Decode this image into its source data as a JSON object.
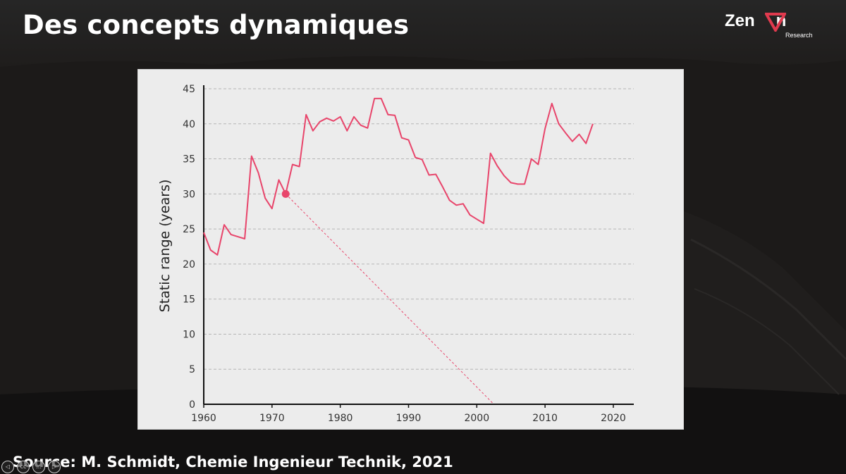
{
  "slide": {
    "title": "Des concepts dynamiques",
    "source": "Source: M. Schmidt, Chemie Ingenieur Technik, 2021"
  },
  "logo": {
    "name": "Zen▽n",
    "sub": "Research",
    "accent": "#e03a4e"
  },
  "player": {
    "controls": [
      {
        "name": "prev-control",
        "glyph": "◁"
      },
      {
        "name": "captions-control",
        "glyph": "cc"
      },
      {
        "name": "settings-control",
        "glyph": "…"
      },
      {
        "name": "next-control",
        "glyph": "▷"
      }
    ]
  },
  "chart_data": {
    "type": "line",
    "ylabel": "Static range (years)",
    "xlabel": "",
    "xlim": [
      1960,
      2023
    ],
    "ylim": [
      0,
      45
    ],
    "x_ticks": [
      1960,
      1970,
      1980,
      1990,
      2000,
      2010,
      2020
    ],
    "y_ticks": [
      0,
      5,
      10,
      15,
      20,
      25,
      30,
      35,
      40,
      45
    ],
    "grid": "horizontal-dashed",
    "line_color": "#e8456b",
    "series": [
      {
        "x": [
          1960,
          1961,
          1962,
          1963,
          1964,
          1965,
          1966,
          1967,
          1968,
          1969,
          1970,
          1971,
          1972,
          1973,
          1974,
          1975,
          1976,
          1977,
          1978,
          1979,
          1980,
          1981,
          1982,
          1983,
          1984,
          1985,
          1986,
          1987,
          1988,
          1989,
          1990,
          1991,
          1992,
          1993,
          1994,
          1995,
          1996,
          1997,
          1998,
          1999,
          2000,
          2001,
          2002,
          2003,
          2004,
          2005,
          2006,
          2007,
          2008,
          2009,
          2010,
          2011,
          2012,
          2013,
          2014,
          2015,
          2016,
          2017
        ],
        "values": [
          24.5,
          22.0,
          21.3,
          25.6,
          24.2,
          23.9,
          23.6,
          35.4,
          33.0,
          29.4,
          27.9,
          32.0,
          30.0,
          34.2,
          33.9,
          41.3,
          39.0,
          40.3,
          40.8,
          40.4,
          41.0,
          39.0,
          41.0,
          39.8,
          39.4,
          43.6,
          43.6,
          41.3,
          41.2,
          38.0,
          37.7,
          35.2,
          34.9,
          32.7,
          32.8,
          31.0,
          29.1,
          28.4,
          28.6,
          27.0,
          26.4,
          25.8,
          35.8,
          34.0,
          32.6,
          31.6,
          31.4,
          31.4,
          35.0,
          34.2,
          39.3,
          42.9,
          40.0,
          38.7,
          37.5,
          38.5,
          37.2,
          40.0
        ]
      }
    ],
    "highlight_point": {
      "x": 1972,
      "y": 30
    },
    "projection_line": {
      "from": [
        1972,
        30
      ],
      "to": [
        2002.5,
        0
      ]
    }
  }
}
